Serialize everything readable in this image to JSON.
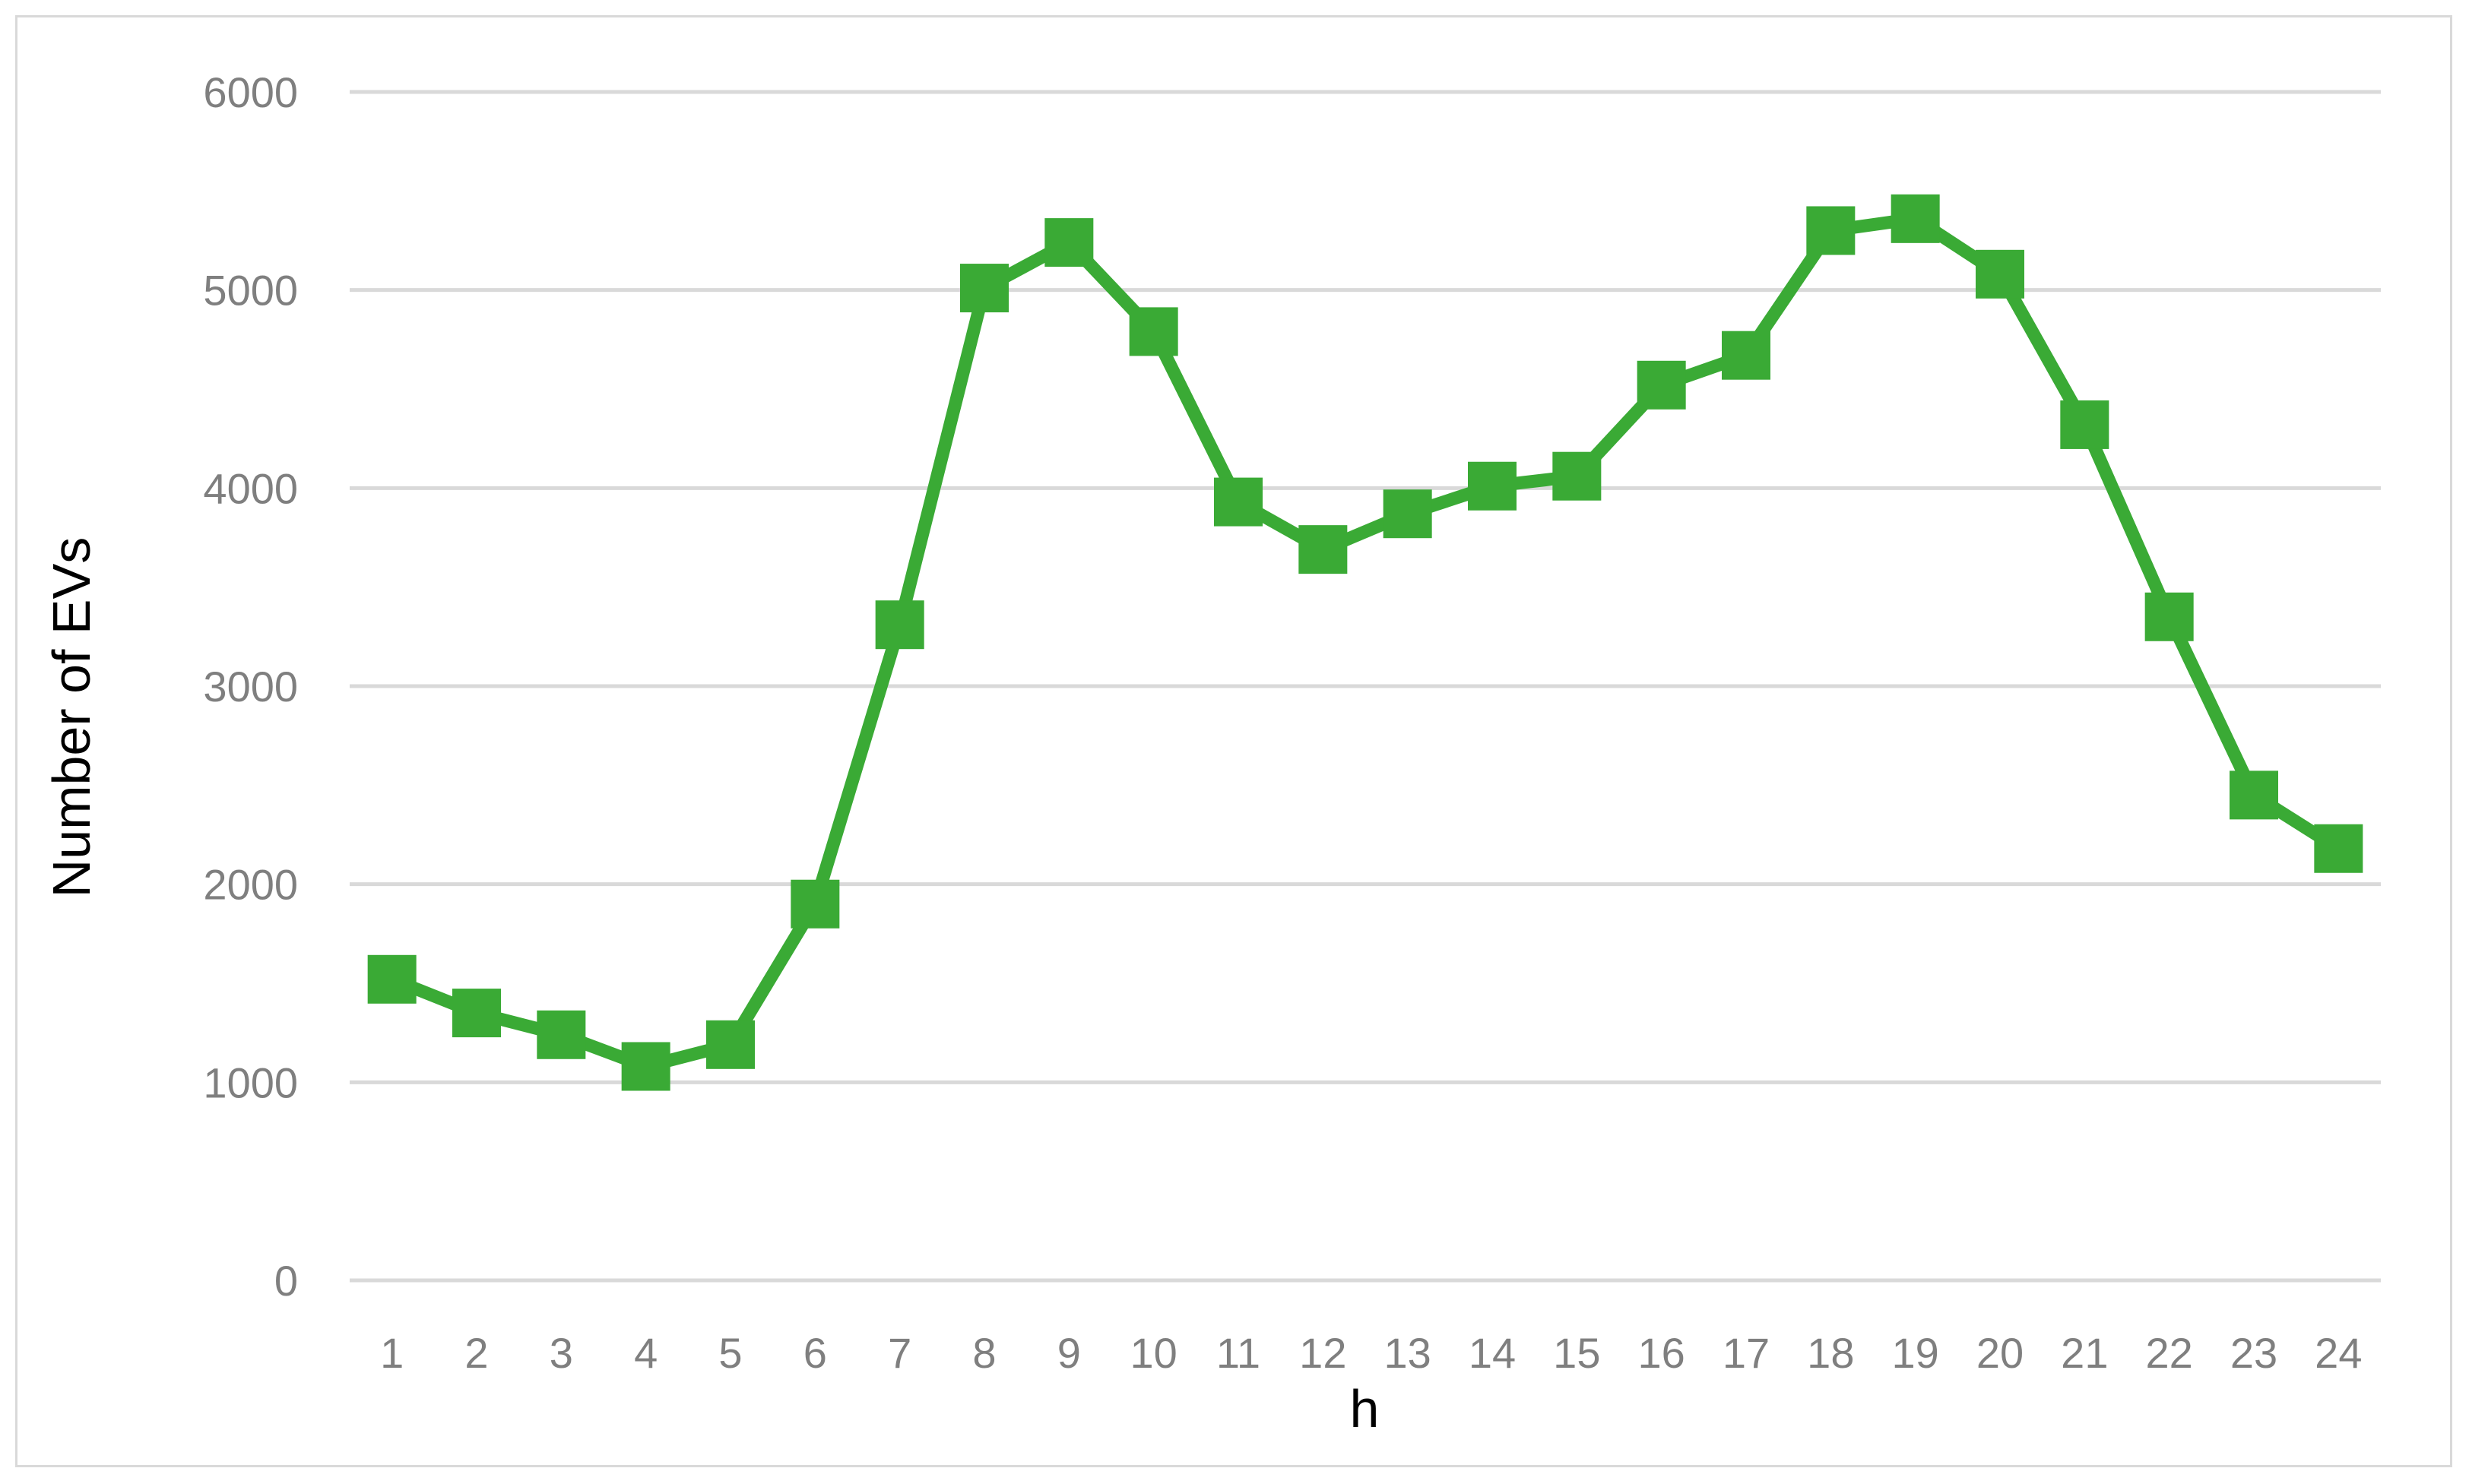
{
  "chart_data": {
    "type": "line",
    "title": "",
    "xlabel": "h",
    "ylabel": "Number of EVs",
    "categories": [
      "1",
      "2",
      "3",
      "4",
      "5",
      "6",
      "7",
      "8",
      "9",
      "10",
      "11",
      "12",
      "13",
      "14",
      "15",
      "16",
      "17",
      "18",
      "19",
      "20",
      "21",
      "22",
      "23",
      "24"
    ],
    "series": [
      {
        "values": [
          1520,
          1350,
          1240,
          1080,
          1190,
          1900,
          3310,
          5010,
          5240,
          4790,
          3930,
          3690,
          3870,
          4010,
          4060,
          4520,
          4670,
          5300,
          5360,
          5080,
          4320,
          3350,
          2450,
          2180
        ]
      }
    ],
    "ylim": [
      0,
      6000
    ],
    "yticks": [
      "0",
      "1000",
      "2000",
      "3000",
      "4000",
      "5000",
      "6000"
    ],
    "grid": true,
    "legend": "none",
    "colors": {
      "series": "#3aaa35",
      "grid": "#d9d9d9",
      "tick_text": "#7f7f7f",
      "frame": "#d9d9d9"
    },
    "marker": "square"
  }
}
